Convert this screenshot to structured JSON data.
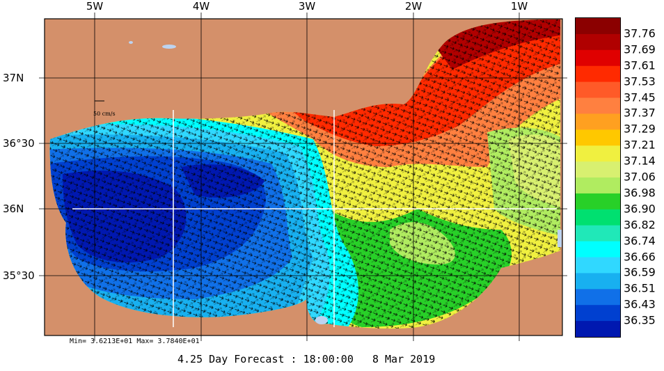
{
  "map": {
    "lon_labels": [
      "5W",
      "4W",
      "3W",
      "2W",
      "1W"
    ],
    "lat_labels": [
      "37N",
      "36°30",
      "36N",
      "35°30"
    ],
    "lon_range": [
      -5.45,
      -0.55
    ],
    "lat_range": [
      35.07,
      37.45
    ],
    "vector_scale_label": "50 cm/s",
    "colors": {
      "land": "#d4906a",
      "grid": "#000000",
      "section_line": "#ffffff",
      "lake": "#bcd3f0"
    }
  },
  "stats_text": "Min= 3.6213E+01  Max= 3.7840E+01",
  "caption": "4.25 Day Forecast : 18:00:00   8 Mar 2019",
  "colorbar": {
    "labels": [
      "37.76",
      "37.69",
      "37.61",
      "37.53",
      "37.45",
      "37.37",
      "37.29",
      "37.21",
      "37.14",
      "37.06",
      "36.98",
      "36.90",
      "36.82",
      "36.74",
      "36.66",
      "36.59",
      "36.51",
      "36.43",
      "36.35"
    ],
    "colors": [
      "#8b0000",
      "#b00000",
      "#e00000",
      "#ff2a00",
      "#ff5a28",
      "#ff8040",
      "#ffa020",
      "#ffc800",
      "#f0f040",
      "#d8f070",
      "#b0ec60",
      "#28d028",
      "#00e070",
      "#20e8b8",
      "#00ffff",
      "#30d8ff",
      "#18b0f0",
      "#1070e8",
      "#0040d0",
      "#0018b0"
    ]
  }
}
